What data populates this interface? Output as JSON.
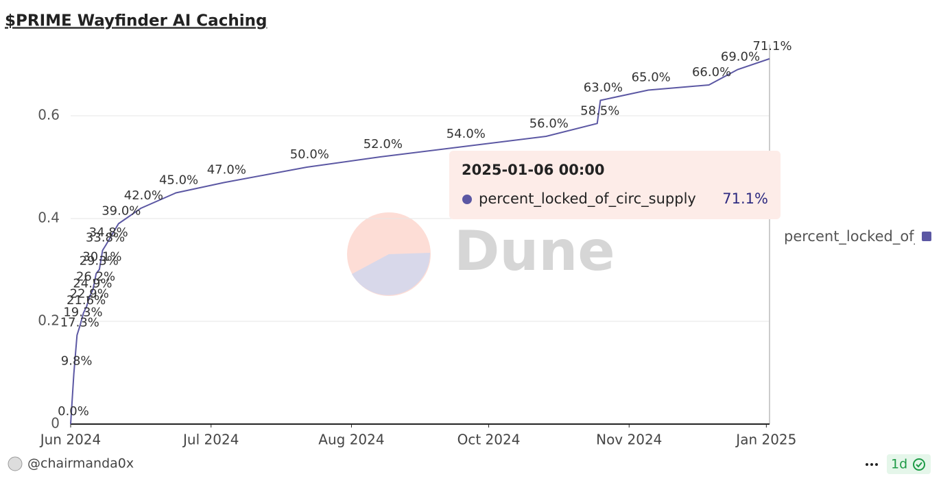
{
  "chart_data": {
    "type": "line",
    "title": "$PRIME Wayfinder AI Caching",
    "x": [
      "2024-06-01",
      "2024-06-02",
      "2024-06-03",
      "2024-06-04",
      "2024-06-05",
      "2024-06-06",
      "2024-06-07",
      "2024-06-08",
      "2024-06-09",
      "2024-06-10",
      "2024-06-11",
      "2024-06-12",
      "2024-06-16",
      "2024-06-23",
      "2024-07-04",
      "2024-07-19",
      "2024-08-14",
      "2024-09-06",
      "2024-10-02",
      "2024-10-28",
      "2024-11-13",
      "2024-11-14",
      "2024-11-29",
      "2024-12-18",
      "2024-12-27",
      "2025-01-06"
    ],
    "series": [
      {
        "name": "percent_locked_of_circ_supply",
        "color": "#5b57a3",
        "values": [
          0,
          0.098,
          0.173,
          0.193,
          0.216,
          0.229,
          0.249,
          0.262,
          0.293,
          0.301,
          0.338,
          0.348,
          0.39,
          0.42,
          0.45,
          0.47,
          0.5,
          0.52,
          0.54,
          0.56,
          0.585,
          0.63,
          0.65,
          0.66,
          0.69,
          0.711
        ],
        "value_labels": [
          "0.0%",
          "9.8%",
          "17.3%",
          "19.3%",
          "21.6%",
          "22.9%",
          "24.9%",
          "26.2%",
          "29.3%",
          "30.1%",
          "33.8%",
          "34.8%",
          "39.0%",
          "42.0%",
          "45.0%",
          "47.0%",
          "50.0%",
          "52.0%",
          "54.0%",
          "56.0%",
          "58.5%",
          "63.0%",
          "65.0%",
          "66.0%",
          "69.0%",
          "71.1%"
        ]
      }
    ],
    "xlim": [
      "2024-06-01",
      "2025-01-06"
    ],
    "xticks": [
      {
        "value": "2024-06-01",
        "label": "Jun 2024"
      },
      {
        "value": "2024-07-15",
        "label": "Jul 2024"
      },
      {
        "value": "2024-08-28",
        "label": "Aug 2024"
      },
      {
        "value": "2024-10-10",
        "label": "Oct 2024"
      },
      {
        "value": "2024-11-23",
        "label": "Nov 2024"
      },
      {
        "value": "2025-01-05",
        "label": "Jan 2025"
      }
    ],
    "ylim": [
      0,
      0.732
    ],
    "yticks": [
      0,
      0.2,
      0.4,
      0.6
    ],
    "grid": true,
    "tooltip_title": "2025-01-06 00:00",
    "watermark": "Dune"
  },
  "footer": {
    "author": "@chairmanda0x",
    "age": "1d"
  }
}
